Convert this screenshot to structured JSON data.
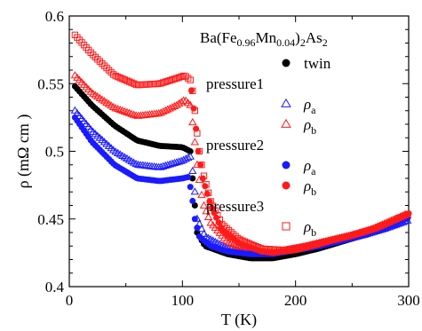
{
  "chart_data": {
    "type": "scatter",
    "title": "",
    "xlabel": "T (K)",
    "ylabel": "ρ (mΩ cm )",
    "xlim": [
      0,
      300
    ],
    "ylim": [
      0.4,
      0.6
    ],
    "x_ticks": [
      0,
      100,
      200,
      300
    ],
    "y_ticks": [
      0.4,
      0.45,
      0.5,
      0.55,
      0.6
    ],
    "x_tick_labels": [
      "0",
      "100",
      "200",
      "300"
    ],
    "y_tick_labels": [
      "0.4",
      "0.45",
      "0.5",
      "0.55",
      "0.6"
    ],
    "grid": false,
    "legend_position": "top-right",
    "legend_title_base": "Ba(Fe",
    "legend_title_sub1": "0.96",
    "legend_title_mid": "Mn",
    "legend_title_sub2": "0.04",
    "legend_title_mid2": ")",
    "legend_title_sub3": "2",
    "legend_title_end": "As",
    "legend_title_sub4": "2",
    "legend_groups": [
      {
        "label": "",
        "entries": [
          {
            "marker": "filled-circle",
            "color": "#000000",
            "text": "twin",
            "sub": ""
          }
        ]
      },
      {
        "label": "pressure1",
        "entries": [
          {
            "marker": "open-triangle",
            "color": "#1a1aff",
            "text": "ρ",
            "sub": "a"
          },
          {
            "marker": "open-triangle",
            "color": "#ff1a1a",
            "text": "ρ",
            "sub": "b"
          }
        ]
      },
      {
        "label": "pressure2",
        "entries": [
          {
            "marker": "filled-circle",
            "color": "#1a1aff",
            "text": "ρ",
            "sub": "a"
          },
          {
            "marker": "filled-circle",
            "color": "#ff1a1a",
            "text": "ρ",
            "sub": "b"
          }
        ]
      },
      {
        "label": "pressure3",
        "entries": [
          {
            "marker": "open-square",
            "color": "#ff1a1a",
            "text": "ρ",
            "sub": "b"
          }
        ]
      }
    ],
    "series": [
      {
        "id": "twin",
        "marker": "filled-circle",
        "color": "#000000",
        "points": [
          [
            5,
            0.548
          ],
          [
            20,
            0.534
          ],
          [
            40,
            0.519
          ],
          [
            60,
            0.508
          ],
          [
            80,
            0.504
          ],
          [
            100,
            0.503
          ],
          [
            107,
            0.5
          ],
          [
            110,
            0.47
          ],
          [
            113,
            0.44
          ],
          [
            120,
            0.43
          ],
          [
            140,
            0.424
          ],
          [
            160,
            0.421
          ],
          [
            180,
            0.421
          ],
          [
            200,
            0.424
          ],
          [
            220,
            0.428
          ],
          [
            240,
            0.433
          ],
          [
            260,
            0.438
          ],
          [
            280,
            0.444
          ],
          [
            300,
            0.451
          ]
        ]
      },
      {
        "id": "p1a",
        "marker": "open-triangle",
        "color": "#1a1aff",
        "points": [
          [
            5,
            0.53
          ],
          [
            20,
            0.515
          ],
          [
            40,
            0.5
          ],
          [
            60,
            0.49
          ],
          [
            80,
            0.488
          ],
          [
            100,
            0.493
          ],
          [
            107,
            0.496
          ],
          [
            110,
            0.48
          ],
          [
            113,
            0.45
          ],
          [
            120,
            0.437
          ],
          [
            140,
            0.428
          ],
          [
            160,
            0.425
          ],
          [
            180,
            0.425
          ],
          [
            200,
            0.427
          ],
          [
            220,
            0.43
          ],
          [
            240,
            0.434
          ],
          [
            260,
            0.438
          ],
          [
            280,
            0.443
          ],
          [
            300,
            0.449
          ]
        ]
      },
      {
        "id": "p1b",
        "marker": "open-triangle",
        "color": "#ff1a1a",
        "points": [
          [
            5,
            0.556
          ],
          [
            20,
            0.543
          ],
          [
            40,
            0.532
          ],
          [
            60,
            0.526
          ],
          [
            80,
            0.528
          ],
          [
            95,
            0.534
          ],
          [
            102,
            0.538
          ],
          [
            107,
            0.534
          ],
          [
            110,
            0.515
          ],
          [
            113,
            0.49
          ],
          [
            118,
            0.462
          ],
          [
            125,
            0.447
          ],
          [
            140,
            0.433
          ],
          [
            160,
            0.426
          ],
          [
            180,
            0.425
          ],
          [
            200,
            0.428
          ],
          [
            220,
            0.432
          ],
          [
            240,
            0.436
          ],
          [
            260,
            0.44
          ],
          [
            280,
            0.446
          ],
          [
            300,
            0.453
          ]
        ]
      },
      {
        "id": "p2a",
        "marker": "filled-circle",
        "color": "#1a1aff",
        "points": [
          [
            5,
            0.525
          ],
          [
            20,
            0.507
          ],
          [
            40,
            0.49
          ],
          [
            60,
            0.48
          ],
          [
            80,
            0.478
          ],
          [
            100,
            0.48
          ],
          [
            105,
            0.481
          ],
          [
            108,
            0.47
          ],
          [
            111,
            0.45
          ],
          [
            115,
            0.437
          ],
          [
            125,
            0.43
          ],
          [
            140,
            0.426
          ],
          [
            160,
            0.424
          ],
          [
            180,
            0.424
          ],
          [
            200,
            0.427
          ],
          [
            220,
            0.431
          ],
          [
            240,
            0.435
          ],
          [
            260,
            0.439
          ],
          [
            280,
            0.444
          ],
          [
            300,
            0.451
          ]
        ]
      },
      {
        "id": "p2b",
        "marker": "filled-circle",
        "color": "#ff1a1a",
        "points": [
          [
            108,
            0.545
          ],
          [
            111,
            0.525
          ],
          [
            114,
            0.5
          ],
          [
            118,
            0.48
          ],
          [
            125,
            0.46
          ],
          [
            135,
            0.442
          ],
          [
            150,
            0.432
          ],
          [
            170,
            0.426
          ],
          [
            180,
            0.425
          ],
          [
            200,
            0.427
          ],
          [
            220,
            0.431
          ],
          [
            240,
            0.436
          ],
          [
            260,
            0.44
          ],
          [
            280,
            0.446
          ],
          [
            300,
            0.454
          ]
        ]
      },
      {
        "id": "p3b",
        "marker": "open-square",
        "color": "#ff1a1a",
        "points": [
          [
            5,
            0.586
          ],
          [
            20,
            0.572
          ],
          [
            40,
            0.556
          ],
          [
            60,
            0.549
          ],
          [
            80,
            0.55
          ],
          [
            95,
            0.554
          ],
          [
            102,
            0.556
          ],
          [
            108,
            0.552
          ],
          [
            111,
            0.53
          ],
          [
            114,
            0.505
          ],
          [
            118,
            0.485
          ],
          [
            125,
            0.463
          ],
          [
            135,
            0.446
          ],
          [
            150,
            0.435
          ],
          [
            170,
            0.428
          ],
          [
            190,
            0.427
          ],
          [
            210,
            0.43
          ],
          [
            230,
            0.434
          ],
          [
            250,
            0.438
          ],
          [
            270,
            0.443
          ],
          [
            300,
            0.454
          ]
        ]
      }
    ]
  }
}
